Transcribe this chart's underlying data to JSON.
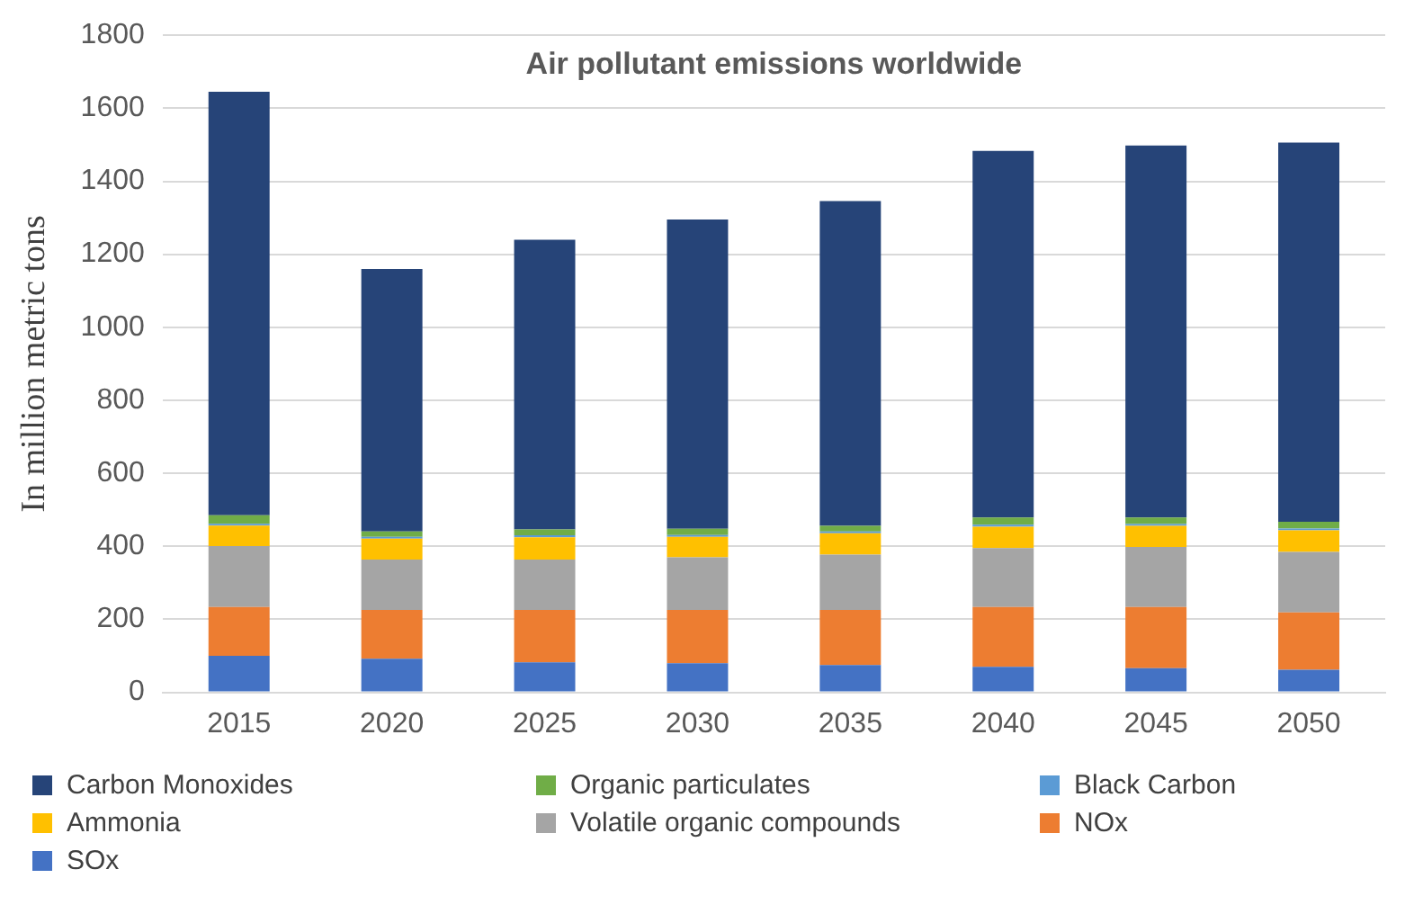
{
  "chart_data": {
    "type": "bar",
    "title": "Air pollutant emissions worldwide",
    "ylabel": "In million metric tons",
    "categories": [
      "2015",
      "2020",
      "2025",
      "2030",
      "2035",
      "2040",
      "2045",
      "2050"
    ],
    "stacked": true,
    "ylim": [
      0,
      1800
    ],
    "yticks": [
      0,
      200,
      400,
      600,
      800,
      1000,
      1200,
      1400,
      1600,
      1800
    ],
    "grid": "y",
    "legend": "bottom",
    "series": [
      {
        "name": "SOx",
        "color": "#4472c4",
        "values": [
          100,
          92,
          82,
          80,
          75,
          70,
          66,
          62
        ]
      },
      {
        "name": "NOx",
        "color": "#ed7d31",
        "values": [
          134,
          134,
          144,
          146,
          151,
          164,
          168,
          157
        ]
      },
      {
        "name": "Volatile organic compounds",
        "color": "#a5a5a5",
        "values": [
          167,
          138,
          138,
          144,
          151,
          161,
          164,
          166
        ]
      },
      {
        "name": "Ammonia",
        "color": "#ffc000",
        "values": [
          56,
          57,
          61,
          56,
          59,
          59,
          58,
          59
        ]
      },
      {
        "name": "Black Carbon",
        "color": "#5b9bd5",
        "values": [
          5,
          5,
          5,
          5,
          5,
          5,
          5,
          5
        ]
      },
      {
        "name": "Organic particulates",
        "color": "#70ad47",
        "values": [
          23,
          15,
          16,
          17,
          15,
          20,
          18,
          18
        ]
      },
      {
        "name": "Carbon Monoxides",
        "color": "#264478",
        "values": [
          1160,
          719,
          794,
          847,
          890,
          1004,
          1019,
          1039
        ]
      }
    ]
  }
}
